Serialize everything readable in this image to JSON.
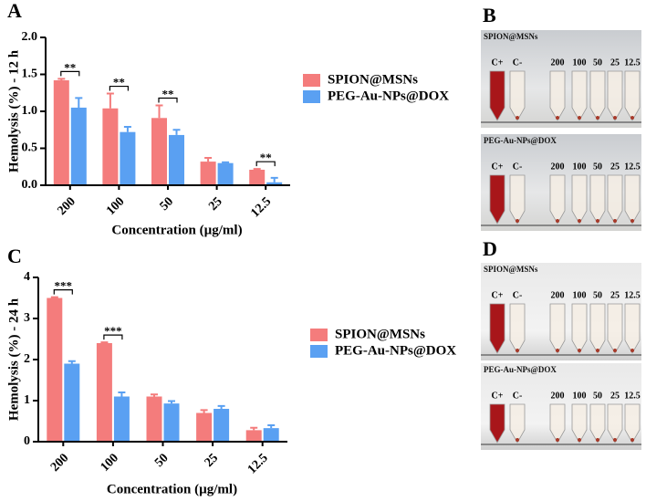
{
  "chart_data": [
    {
      "type": "bar",
      "panel": "A",
      "ylabel": "Hemolysis (%) - 12 h",
      "xlabel": "Concentration (µg/ml)",
      "categories": [
        "200",
        "100",
        "50",
        "25",
        "12.5"
      ],
      "series": [
        {
          "name": "SPION@MSNs",
          "color": "#f47c7c",
          "values": [
            1.42,
            1.04,
            0.91,
            0.32,
            0.21
          ],
          "errors": [
            0.02,
            0.2,
            0.17,
            0.05,
            0.01
          ]
        },
        {
          "name": "PEG-Au-NPs@DOX",
          "color": "#5aa0f2",
          "values": [
            1.05,
            0.72,
            0.68,
            0.3,
            0.04
          ],
          "errors": [
            0.13,
            0.07,
            0.07,
            0.01,
            0.06
          ]
        }
      ],
      "ylim": [
        0,
        2
      ],
      "yticks": [
        {
          "value": 0,
          "label": "0.0"
        },
        0.5,
        {
          "value": 1,
          "label": "1.0"
        },
        1.5,
        {
          "value": 2,
          "label": "2.0"
        }
      ],
      "annotations": [
        {
          "text": "**",
          "category": "200"
        },
        {
          "text": "**",
          "category": "100"
        },
        {
          "text": "**",
          "category": "50"
        },
        {
          "text": "**",
          "category": "12.5"
        }
      ]
    },
    {
      "type": "bar",
      "panel": "C",
      "ylabel": "Hemolysis (%) - 24 h",
      "xlabel": "Concentration (µg/ml)",
      "categories": [
        "200",
        "100",
        "50",
        "25",
        "12.5"
      ],
      "series": [
        {
          "name": "SPION@MSNs",
          "color": "#f47c7c",
          "values": [
            3.5,
            2.4,
            1.1,
            0.7,
            0.28
          ],
          "errors": [
            0.02,
            0.02,
            0.05,
            0.07,
            0.06
          ]
        },
        {
          "name": "PEG-Au-NPs@DOX",
          "color": "#5aa0f2",
          "values": [
            1.9,
            1.1,
            0.93,
            0.8,
            0.33
          ],
          "errors": [
            0.06,
            0.1,
            0.06,
            0.07,
            0.07
          ]
        }
      ],
      "ylim": [
        0,
        4
      ],
      "yticks": [
        0,
        1,
        2,
        3,
        4
      ],
      "annotations": [
        {
          "text": "***",
          "category": "200"
        },
        {
          "text": "***",
          "category": "100"
        }
      ]
    }
  ],
  "photos": [
    {
      "panel": "B",
      "images": [
        {
          "caption": "SPION@MSNs",
          "labels": [
            "C+",
            "C-",
            "200",
            "100",
            "50",
            "25",
            "12.5"
          ]
        },
        {
          "caption": "PEG-Au-NPs@DOX",
          "labels": [
            "C+",
            "C-",
            "200",
            "100",
            "50",
            "25",
            "12.5"
          ]
        }
      ]
    },
    {
      "panel": "D",
      "images": [
        {
          "caption": "SPION@MSNs",
          "labels": [
            "C+",
            "C-",
            "200",
            "100",
            "50",
            "25",
            "12.5"
          ]
        },
        {
          "caption": "PEG-Au-NPs@DOX",
          "labels": [
            "C+",
            "C-",
            "200",
            "100",
            "50",
            "25",
            "12.5"
          ]
        }
      ]
    }
  ]
}
